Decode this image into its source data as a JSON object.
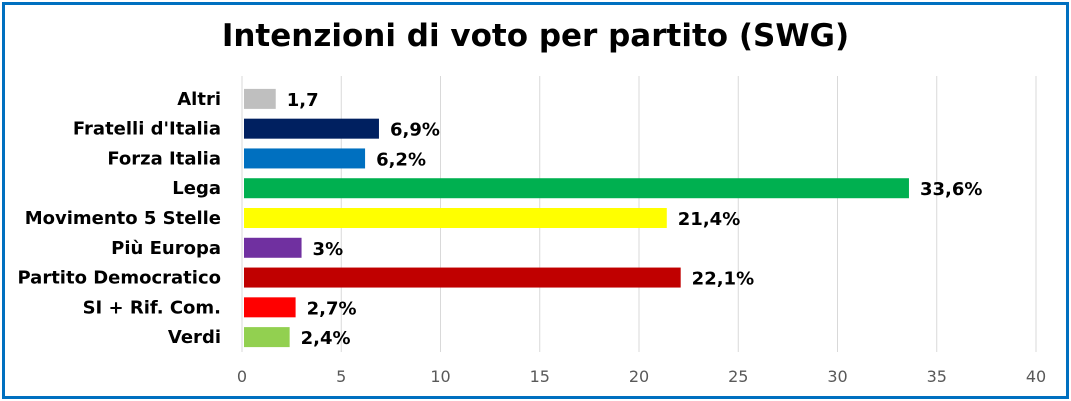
{
  "chart_data": {
    "type": "bar",
    "orientation": "horizontal",
    "title": "Intenzioni di voto per partito (SWG)",
    "xlabel": "",
    "ylabel": "",
    "categories": [
      "Altri",
      "Fratelli d'Italia",
      "Forza Italia",
      "Lega",
      "Movimento 5 Stelle",
      "Più Europa",
      "Partito Democratico",
      "SI + Rif. Com.",
      "Verdi"
    ],
    "values": [
      1.7,
      6.9,
      6.2,
      33.6,
      21.4,
      3,
      22.1,
      2.7,
      2.4
    ],
    "data_labels": [
      "1,7",
      "6,9%",
      "6,2%",
      "33,6%",
      "21,4%",
      "3%",
      "22,1%",
      "2,7%",
      "2,4%"
    ],
    "colors": [
      "#bfbfbf",
      "#002060",
      "#0070c0",
      "#00b050",
      "#ffff00",
      "#7030a0",
      "#c00000",
      "#ff0000",
      "#92d050"
    ],
    "xlim": [
      0,
      40
    ],
    "x_ticks": [
      "0",
      "5",
      "10",
      "15",
      "20",
      "25",
      "30",
      "35",
      "40"
    ],
    "grid": true,
    "legend": "none"
  },
  "frame_color": "#0070c0"
}
